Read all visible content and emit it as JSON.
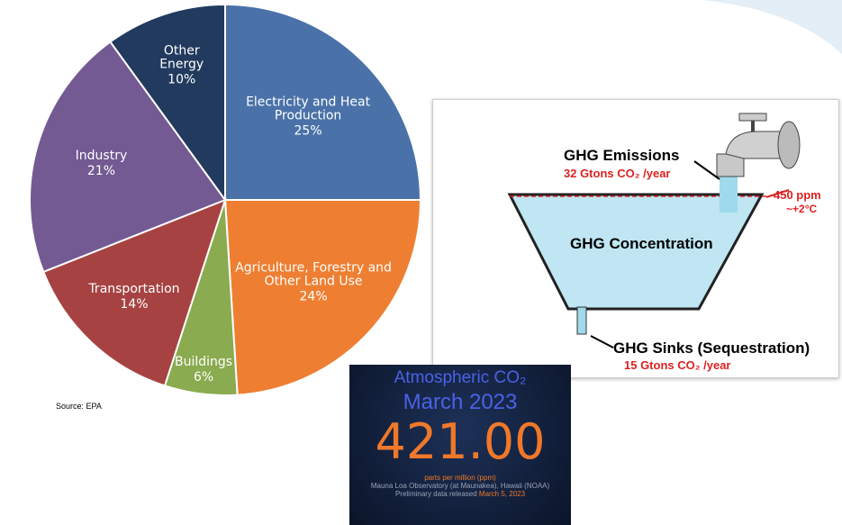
{
  "chart_data": {
    "type": "pie",
    "categories": [
      "Electricity and Heat Production",
      "Agriculture, Forestry and Other Land Use",
      "Buildings",
      "Transportation",
      "Industry",
      "Other Energy"
    ],
    "values": [
      25,
      24,
      6,
      14,
      21,
      10
    ],
    "value_labels": [
      "25%",
      "24%",
      "6%",
      "14%",
      "21%",
      "10%"
    ],
    "colors": [
      "#4a72a8",
      "#ee7f32",
      "#8aab4f",
      "#a64342",
      "#735a93",
      "#213a5e"
    ],
    "source": "Source: EPA"
  },
  "diagram": {
    "emissions_label": "GHG Emissions",
    "emissions_rate": "32 Gtons CO₂ /year",
    "threshold_ppm": "450 ppm",
    "threshold_temp": "~+2°C",
    "concentration_label": "GHG Concentration",
    "sinks_label": "GHG Sinks (Sequestration)",
    "sinks_rate": "15 Gtons CO₂ /year"
  },
  "co2_panel": {
    "title": "Atmospheric CO₂",
    "date": "March 2023",
    "value": "421.00",
    "unit": "parts per million (ppm)",
    "station": "Mauna Loa Observatory (at Maunakea), Hawaii (NOAA)",
    "release_prefix": "Preliminary data released",
    "release_date": "March 5, 2023"
  }
}
